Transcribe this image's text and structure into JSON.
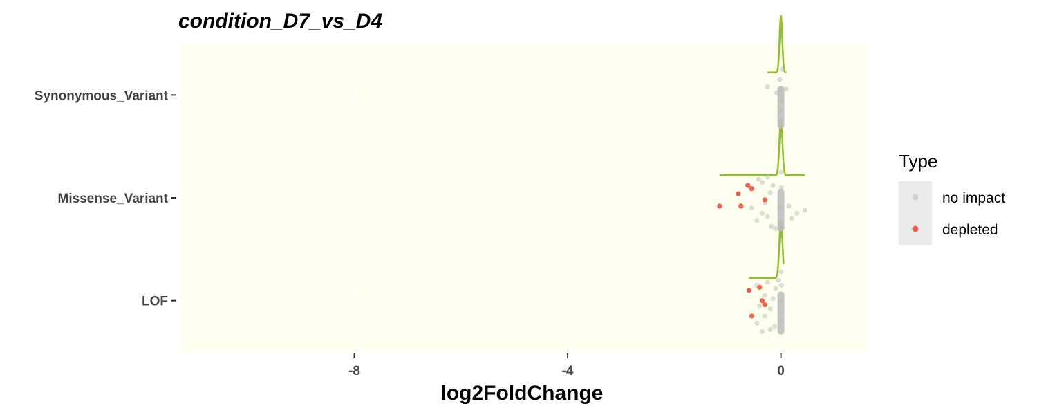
{
  "chart_data": {
    "type": "scatter",
    "title": "condition_D7_vs_D4",
    "xlabel": "log2FoldChange",
    "ylabel": "",
    "xlim": [
      -11.3,
      1.6
    ],
    "x_ticks": [
      -8,
      -4,
      0
    ],
    "categories": [
      "Synonymous_Variant",
      "Missense_Variant",
      "LOF"
    ],
    "grid": true,
    "panel_background": "#FFFFF0",
    "legend": {
      "title": "Type",
      "placement": "right",
      "entries": [
        {
          "label": "no impact",
          "color": "#BBBBBB"
        },
        {
          "label": "depleted",
          "color": "#F2604A"
        }
      ]
    },
    "density_color": "#8DC21F",
    "densities": [
      {
        "category": "Synonymous_Variant",
        "range": [
          -0.25,
          0.1
        ],
        "peak_x": 0.0,
        "width": 0.025
      },
      {
        "category": "Missense_Variant",
        "range": [
          -1.15,
          0.45
        ],
        "peak_x": 0.0,
        "width": 0.028
      },
      {
        "category": "LOF",
        "range": [
          -0.6,
          0.05
        ],
        "peak_x": 0.0,
        "width": 0.03
      }
    ],
    "series": [
      {
        "name": "no impact",
        "color": "#BBBBBB",
        "points": [
          {
            "cat": "Synonymous_Variant",
            "x": -0.25,
            "j": -0.08
          },
          {
            "cat": "Synonymous_Variant",
            "x": 0.1,
            "j": -0.06
          },
          {
            "cat": "Synonymous_Variant",
            "x": -0.08,
            "j": -0.02
          },
          {
            "cat": "Synonymous_Variant",
            "x": 0.0,
            "j": 0.25
          },
          {
            "cat": "Synonymous_Variant",
            "x": -0.01,
            "j": 0.15
          },
          {
            "cat": "Synonymous_Variant",
            "x": 0.01,
            "j": 0.05
          },
          {
            "cat": "Synonymous_Variant",
            "x": 0.0,
            "j": -0.05
          },
          {
            "cat": "Synonymous_Variant",
            "x": -0.02,
            "j": -0.15
          },
          {
            "cat": "Synonymous_Variant",
            "x": 0.02,
            "j": -0.25
          },
          {
            "cat": "Synonymous_Variant",
            "x": 0.0,
            "j": 0.0
          },
          {
            "cat": "Missense_Variant",
            "x": -0.25,
            "j": 0.18
          },
          {
            "cat": "Missense_Variant",
            "x": -0.35,
            "j": 0.15
          },
          {
            "cat": "Missense_Variant",
            "x": -0.45,
            "j": 0.22
          },
          {
            "cat": "Missense_Variant",
            "x": -0.55,
            "j": 0.1
          },
          {
            "cat": "Missense_Variant",
            "x": -0.3,
            "j": 0.05
          },
          {
            "cat": "Missense_Variant",
            "x": -0.2,
            "j": -0.05
          },
          {
            "cat": "Missense_Variant",
            "x": -0.15,
            "j": -0.12
          },
          {
            "cat": "Missense_Variant",
            "x": -0.35,
            "j": -0.15
          },
          {
            "cat": "Missense_Variant",
            "x": -0.42,
            "j": -0.18
          },
          {
            "cat": "Missense_Variant",
            "x": -0.25,
            "j": -0.2
          },
          {
            "cat": "Missense_Variant",
            "x": -0.18,
            "j": 0.28
          },
          {
            "cat": "Missense_Variant",
            "x": 0.2,
            "j": 0.2
          },
          {
            "cat": "Missense_Variant",
            "x": 0.3,
            "j": 0.15
          },
          {
            "cat": "Missense_Variant",
            "x": 0.45,
            "j": 0.12
          },
          {
            "cat": "Missense_Variant",
            "x": 0.15,
            "j": 0.08
          },
          {
            "cat": "Missense_Variant",
            "x": -0.1,
            "j": 0.3
          },
          {
            "cat": "Missense_Variant",
            "x": 0.0,
            "j": 0.25
          },
          {
            "cat": "Missense_Variant",
            "x": -0.01,
            "j": 0.1
          },
          {
            "cat": "Missense_Variant",
            "x": 0.01,
            "j": -0.1
          },
          {
            "cat": "Missense_Variant",
            "x": 0.0,
            "j": -0.25
          },
          {
            "cat": "LOF",
            "x": -0.35,
            "j": 0.3
          },
          {
            "cat": "LOF",
            "x": -0.2,
            "j": 0.28
          },
          {
            "cat": "LOF",
            "x": -0.12,
            "j": 0.25
          },
          {
            "cat": "LOF",
            "x": -0.45,
            "j": 0.22
          },
          {
            "cat": "LOF",
            "x": -0.3,
            "j": 0.15
          },
          {
            "cat": "LOF",
            "x": -0.4,
            "j": 0.05
          },
          {
            "cat": "LOF",
            "x": -0.2,
            "j": 0.08
          },
          {
            "cat": "LOF",
            "x": -0.3,
            "j": -0.05
          },
          {
            "cat": "LOF",
            "x": -0.15,
            "j": -0.02
          },
          {
            "cat": "LOF",
            "x": -0.45,
            "j": -0.15
          },
          {
            "cat": "LOF",
            "x": -0.25,
            "j": -0.18
          },
          {
            "cat": "LOF",
            "x": -0.1,
            "j": -0.12
          },
          {
            "cat": "LOF",
            "x": -0.05,
            "j": -0.2
          },
          {
            "cat": "LOF",
            "x": 0.0,
            "j": 0.2
          },
          {
            "cat": "LOF",
            "x": -0.01,
            "j": 0.0
          },
          {
            "cat": "LOF",
            "x": 0.01,
            "j": -0.15
          },
          {
            "cat": "LOF",
            "x": 0.0,
            "j": -0.28
          }
        ]
      },
      {
        "name": "depleted",
        "color": "#F2604A",
        "points": [
          {
            "cat": "Missense_Variant",
            "x": -1.15,
            "j": 0.08
          },
          {
            "cat": "Missense_Variant",
            "x": -0.75,
            "j": 0.08
          },
          {
            "cat": "Missense_Variant",
            "x": -0.3,
            "j": 0.02
          },
          {
            "cat": "Missense_Variant",
            "x": -0.8,
            "j": -0.04
          },
          {
            "cat": "Missense_Variant",
            "x": -0.55,
            "j": -0.09
          },
          {
            "cat": "Missense_Variant",
            "x": -0.62,
            "j": -0.12
          },
          {
            "cat": "LOF",
            "x": -0.55,
            "j": 0.15
          },
          {
            "cat": "LOF",
            "x": -0.3,
            "j": 0.04
          },
          {
            "cat": "LOF",
            "x": -0.35,
            "j": 0.0
          },
          {
            "cat": "LOF",
            "x": -0.6,
            "j": -0.1
          },
          {
            "cat": "LOF",
            "x": -0.4,
            "j": -0.13
          }
        ]
      }
    ]
  }
}
